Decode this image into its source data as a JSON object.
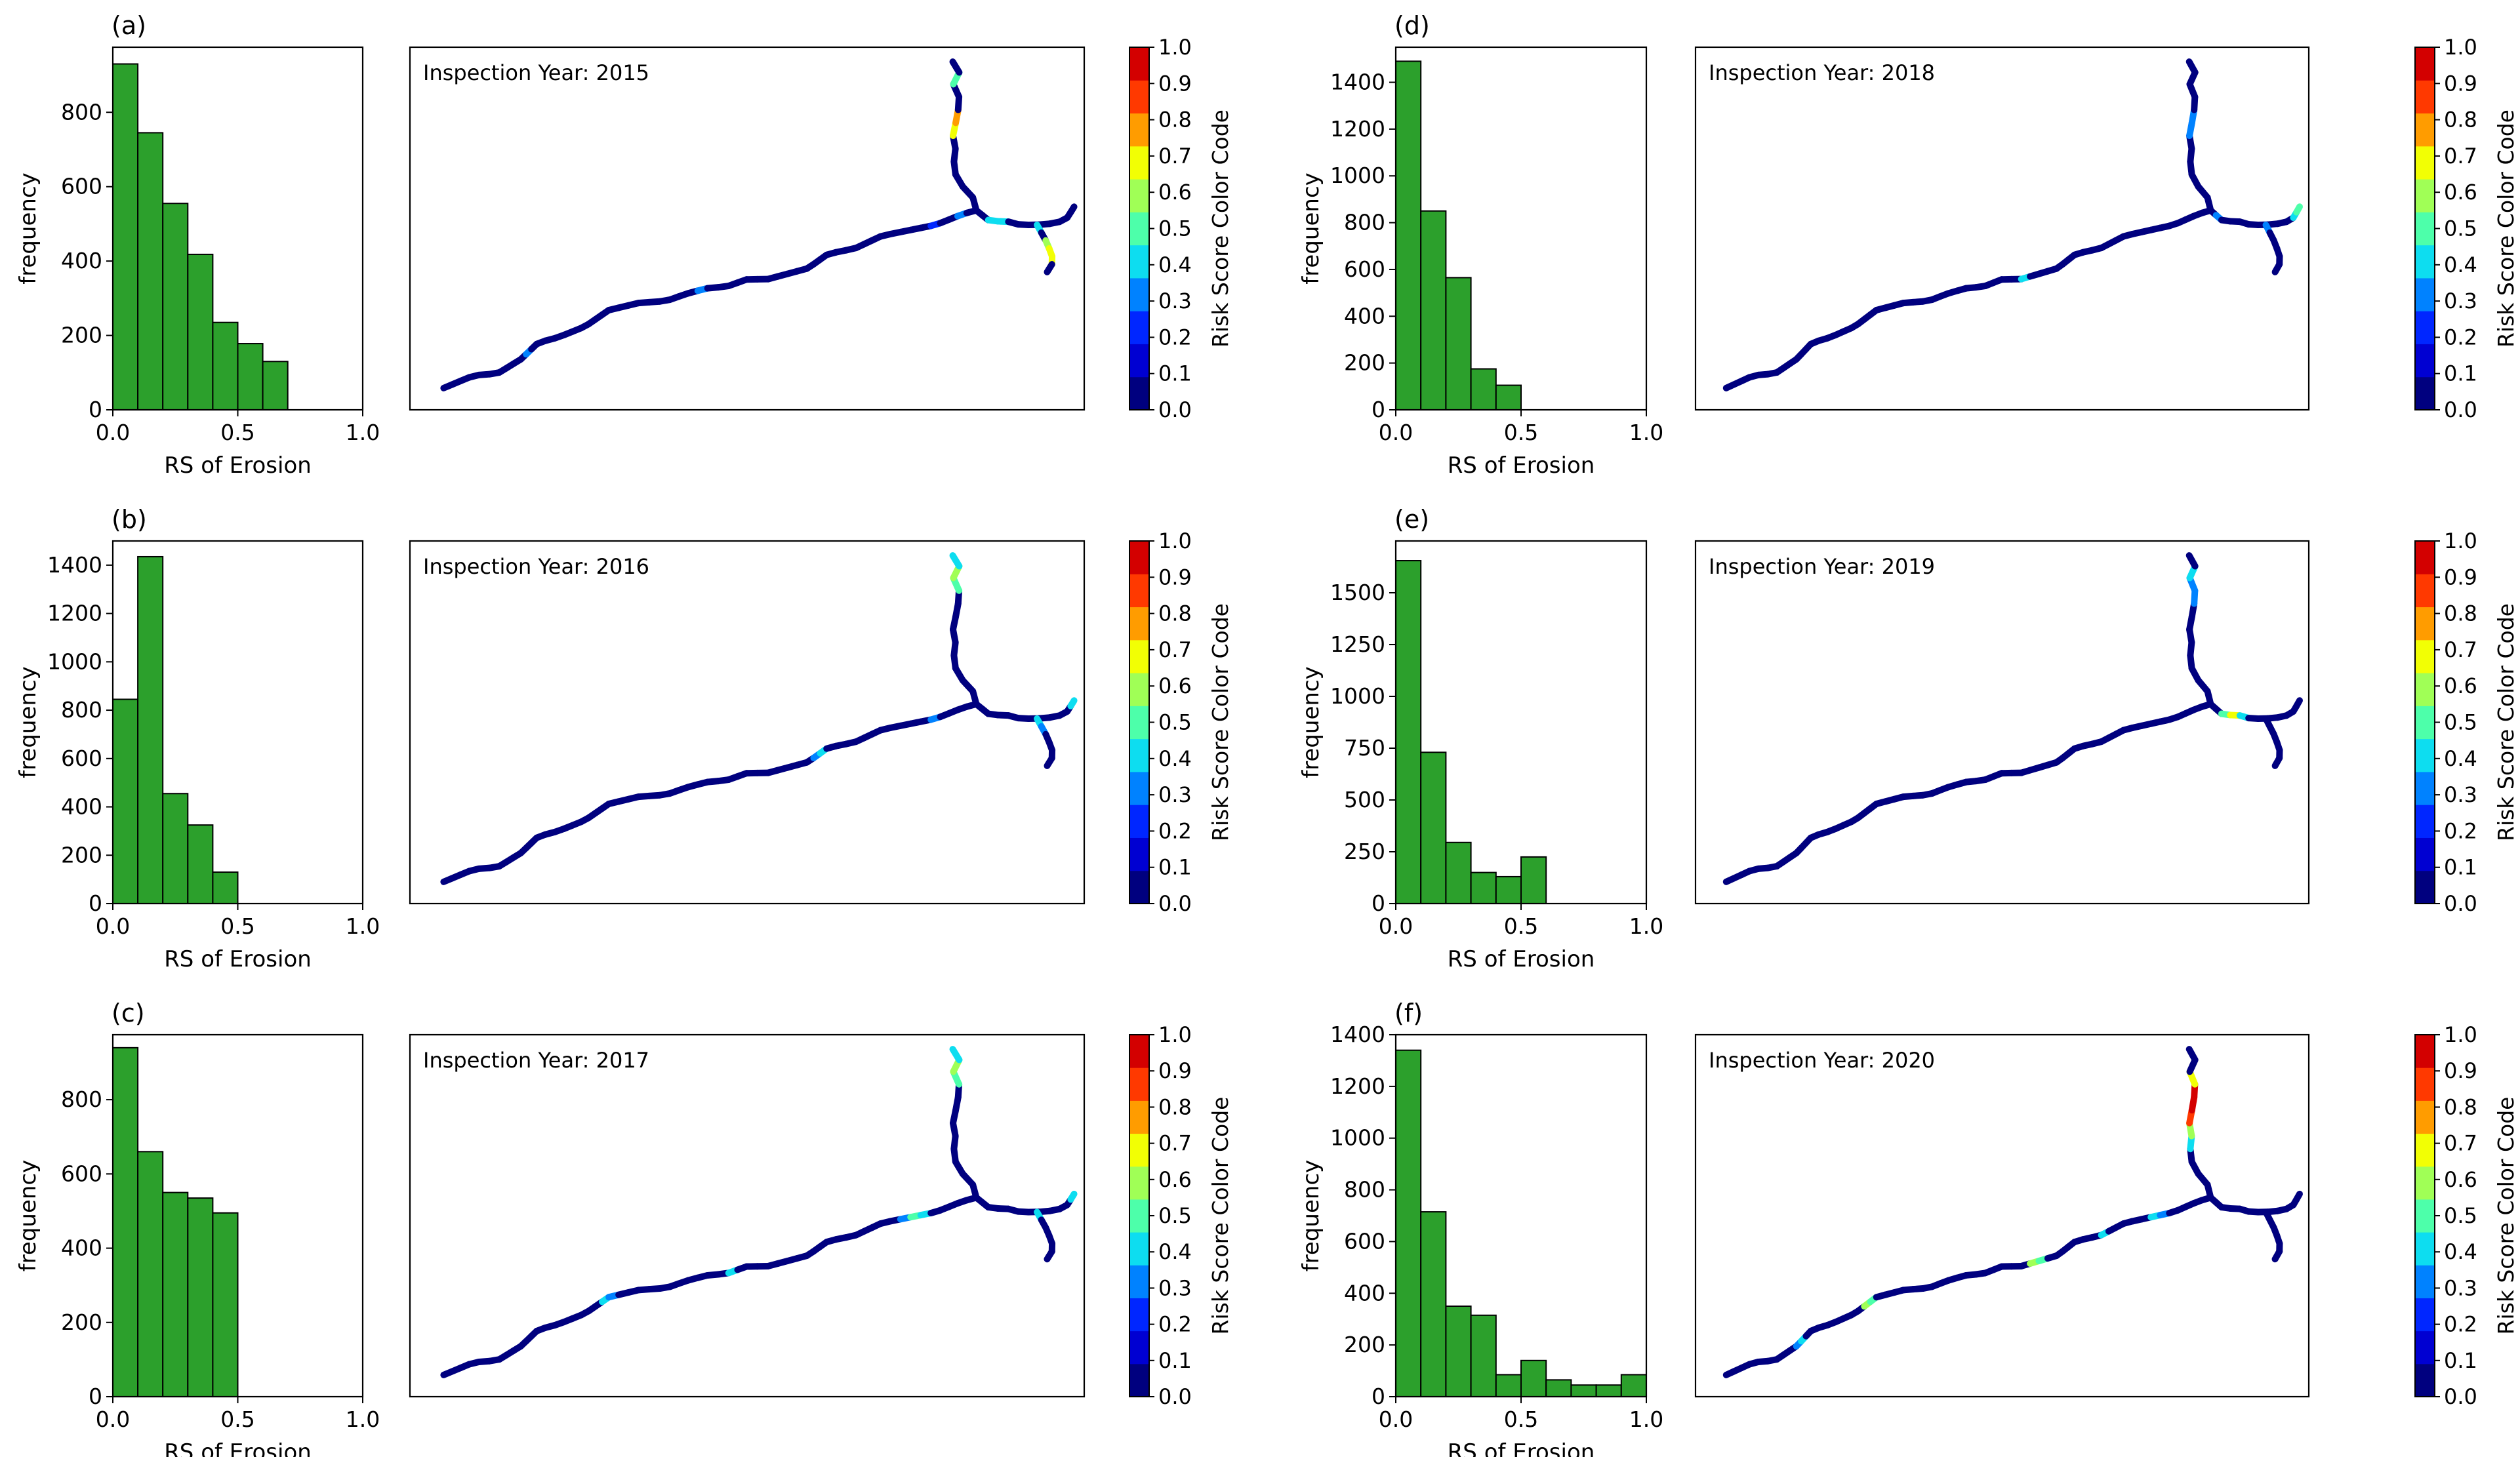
{
  "figure": {
    "colorbar_label": "Risk Score Color Code",
    "colorbar_ticks": [
      "0.0",
      "0.1",
      "0.2",
      "0.3",
      "0.4",
      "0.5",
      "0.6",
      "0.7",
      "0.8",
      "0.9",
      "1.0"
    ],
    "colorbar_colors": [
      "#00007f",
      "#0000d2",
      "#0026ff",
      "#0082ff",
      "#0dddf0",
      "#4dffaa",
      "#a0ff56",
      "#f2ff04",
      "#ff9c00",
      "#ff3900",
      "#d30000"
    ],
    "hist_color": "#2ca02c",
    "map_line_base_color": "#00007f"
  },
  "chart_data": [
    {
      "type": "bar",
      "panel_label": "(a)",
      "title": "Inspection Year: 2015",
      "xlabel": "RS of Erosion",
      "ylabel": "frequency",
      "xlim": [
        0,
        1.0
      ],
      "ylim": [
        0,
        975
      ],
      "xticks": [
        "0.0",
        "0.5",
        "1.0"
      ],
      "yticks": [
        0,
        200,
        400,
        600,
        800
      ],
      "bin_width": 0.1,
      "bins": [
        0.0,
        0.1,
        0.2,
        0.3,
        0.4,
        0.5,
        0.6
      ],
      "values": [
        930,
        745,
        555,
        418,
        235,
        178,
        130
      ],
      "path_segments": [
        {
          "idx": 10,
          "c": 3
        },
        {
          "idx": 30,
          "c": 3
        },
        {
          "idx": 55,
          "c": 2
        },
        {
          "idx": 58,
          "c": 3
        },
        {
          "idx": 66,
          "c": 7
        },
        {
          "idx": 67,
          "c": 8
        },
        {
          "idx": 70,
          "c": 5
        },
        {
          "idx": 74,
          "c": 4
        },
        {
          "idx": 75,
          "c": 4
        },
        {
          "idx": 84,
          "c": 4
        },
        {
          "idx": 86,
          "c": 6
        },
        {
          "idx": 87,
          "c": 7
        },
        {
          "idx": 88,
          "c": 7
        }
      ]
    },
    {
      "type": "bar",
      "panel_label": "(b)",
      "title": "Inspection Year: 2016",
      "xlabel": "RS of Erosion",
      "ylabel": "frequency",
      "xlim": [
        0,
        1.0
      ],
      "ylim": [
        0,
        1500
      ],
      "xticks": [
        "0.0",
        "0.5",
        "1.0"
      ],
      "yticks": [
        0,
        200,
        400,
        600,
        800,
        1000,
        1200,
        1400
      ],
      "bin_width": 0.1,
      "bins": [
        0.0,
        0.1,
        0.2,
        0.3,
        0.4
      ],
      "values": [
        845,
        1435,
        455,
        325,
        130
      ],
      "path_segments": [
        {
          "idx": 42,
          "c": 3
        },
        {
          "idx": 43,
          "c": 4
        },
        {
          "idx": 55,
          "c": 3
        },
        {
          "idx": 69,
          "c": 5
        },
        {
          "idx": 70,
          "c": 6
        },
        {
          "idx": 71,
          "c": 4
        },
        {
          "idx": 83,
          "c": 4
        },
        {
          "idx": 84,
          "c": 4
        },
        {
          "idx": 85,
          "c": 3
        }
      ]
    },
    {
      "type": "bar",
      "panel_label": "(c)",
      "title": "Inspection Year: 2017",
      "xlabel": "RS of Erosion",
      "ylabel": "frequency",
      "xlim": [
        0,
        1.0
      ],
      "ylim": [
        0,
        975
      ],
      "xticks": [
        "0.0",
        "0.5",
        "1.0"
      ],
      "yticks": [
        0,
        200,
        400,
        600,
        800
      ],
      "bin_width": 0.1,
      "bins": [
        0.0,
        0.1,
        0.2,
        0.3,
        0.4
      ],
      "values": [
        940,
        660,
        550,
        535,
        495
      ],
      "path_segments": [
        {
          "idx": 20,
          "c": 4
        },
        {
          "idx": 21,
          "c": 3
        },
        {
          "idx": 33,
          "c": 4
        },
        {
          "idx": 52,
          "c": 3
        },
        {
          "idx": 53,
          "c": 5
        },
        {
          "idx": 54,
          "c": 4
        },
        {
          "idx": 69,
          "c": 5
        },
        {
          "idx": 70,
          "c": 6
        },
        {
          "idx": 71,
          "c": 4
        },
        {
          "idx": 83,
          "c": 4
        },
        {
          "idx": 84,
          "c": 4
        }
      ]
    },
    {
      "type": "bar",
      "panel_label": "(d)",
      "title": "Inspection Year: 2018",
      "xlabel": "RS of Erosion",
      "ylabel": "frequency",
      "xlim": [
        0,
        1.0
      ],
      "ylim": [
        0,
        1550
      ],
      "xticks": [
        "0.0",
        "0.5",
        "1.0"
      ],
      "yticks": [
        0,
        200,
        400,
        600,
        800,
        1000,
        1200,
        1400
      ],
      "bin_width": 0.1,
      "bins": [
        0.0,
        0.1,
        0.2,
        0.3,
        0.4
      ],
      "values": [
        1490,
        850,
        565,
        175,
        105
      ],
      "path_segments": [
        {
          "idx": 37,
          "c": 4
        },
        {
          "idx": 66,
          "c": 3
        },
        {
          "idx": 67,
          "c": 3
        },
        {
          "idx": 73,
          "c": 3
        },
        {
          "idx": 82,
          "c": 4
        },
        {
          "idx": 83,
          "c": 5
        },
        {
          "idx": 84,
          "c": 3
        }
      ]
    },
    {
      "type": "bar",
      "panel_label": "(e)",
      "title": "Inspection Year: 2019",
      "xlabel": "RS of Erosion",
      "ylabel": "frequency",
      "xlim": [
        0,
        1.0
      ],
      "ylim": [
        0,
        1750
      ],
      "xticks": [
        "0.0",
        "0.5",
        "1.0"
      ],
      "yticks": [
        0,
        250,
        500,
        750,
        1000,
        1250,
        1500
      ],
      "bin_width": 0.1,
      "bins": [
        0.0,
        0.1,
        0.2,
        0.3,
        0.4,
        0.5
      ],
      "values": [
        1655,
        730,
        295,
        150,
        130,
        225
      ],
      "path_segments": [
        {
          "idx": 68,
          "c": 3
        },
        {
          "idx": 69,
          "c": 3
        },
        {
          "idx": 70,
          "c": 4
        },
        {
          "idx": 74,
          "c": 5
        },
        {
          "idx": 75,
          "c": 7
        },
        {
          "idx": 76,
          "c": 4
        }
      ]
    },
    {
      "type": "bar",
      "panel_label": "(f)",
      "title": "Inspection Year: 2020",
      "xlabel": "RS of Erosion",
      "ylabel": "frequency",
      "xlim": [
        0,
        1.0
      ],
      "ylim": [
        0,
        1400
      ],
      "xticks": [
        "0.0",
        "0.5",
        "1.0"
      ],
      "yticks": [
        0,
        200,
        400,
        600,
        800,
        1000,
        1200,
        1400
      ],
      "bin_width": 0.1,
      "bins": [
        0.0,
        0.1,
        0.2,
        0.3,
        0.4,
        0.5,
        0.6,
        0.7,
        0.8,
        0.9
      ],
      "values": [
        1340,
        715,
        350,
        315,
        85,
        140,
        65,
        45,
        45,
        85
      ],
      "path_segments": [
        {
          "idx": 9,
          "c": 3
        },
        {
          "idx": 10,
          "c": 4
        },
        {
          "idx": 19,
          "c": 6
        },
        {
          "idx": 20,
          "c": 5
        },
        {
          "idx": 38,
          "c": 6
        },
        {
          "idx": 39,
          "c": 5
        },
        {
          "idx": 47,
          "c": 4
        },
        {
          "idx": 53,
          "c": 4
        },
        {
          "idx": 54,
          "c": 3
        },
        {
          "idx": 64,
          "c": 4
        },
        {
          "idx": 65,
          "c": 6
        },
        {
          "idx": 66,
          "c": 9
        },
        {
          "idx": 67,
          "c": 10
        },
        {
          "idx": 68,
          "c": 10
        },
        {
          "idx": 69,
          "c": 7
        }
      ]
    }
  ]
}
